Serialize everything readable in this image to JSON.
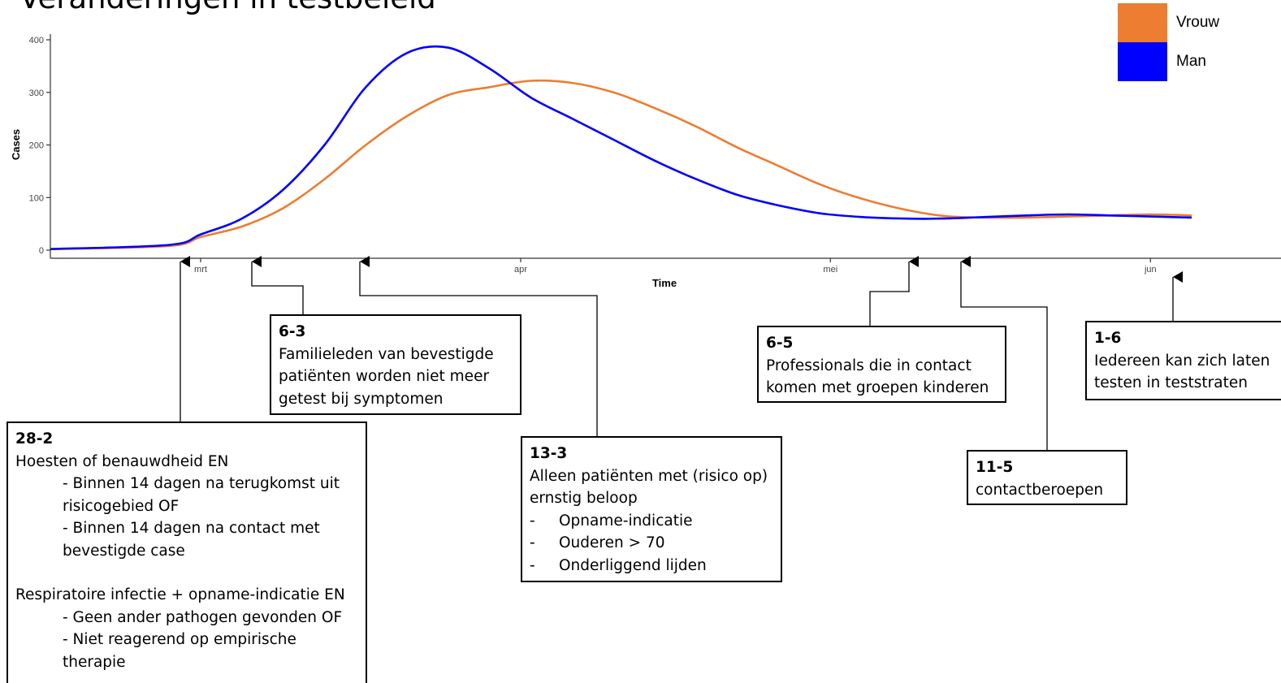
{
  "title": "Veranderingen in testbeleid",
  "chart_data": {
    "type": "line",
    "xlabel": "Time",
    "ylabel": "Cases",
    "ylim": [
      0,
      400
    ],
    "yticks": [
      0,
      100,
      200,
      300,
      400
    ],
    "xticks": [
      "mrt",
      "apr",
      "mei",
      "jun"
    ],
    "x_dates_note_format": "day-month 2020",
    "x": [
      "23-2",
      "27-2",
      "1-3",
      "5-3",
      "9-3",
      "13-3",
      "17-3",
      "21-3",
      "25-3",
      "29-3",
      "2-4",
      "6-4",
      "10-4",
      "14-4",
      "18-4",
      "22-4",
      "26-4",
      "30-4",
      "4-5",
      "8-5",
      "12-5",
      "16-5",
      "20-5",
      "24-5",
      "28-5",
      "1-6",
      "5-6"
    ],
    "series": [
      {
        "name": "Vrouw",
        "color": "#ED7D31",
        "values": [
          2,
          8,
          25,
          45,
          80,
          135,
          200,
          255,
          295,
          310,
          322,
          318,
          300,
          270,
          235,
          195,
          160,
          125,
          98,
          78,
          65,
          62,
          62,
          64,
          66,
          68,
          66
        ]
      },
      {
        "name": "Man",
        "color": "#0000FF",
        "values": [
          2,
          10,
          30,
          60,
          115,
          200,
          310,
          375,
          385,
          345,
          290,
          250,
          210,
          170,
          135,
          105,
          85,
          70,
          63,
          60,
          60,
          63,
          66,
          68,
          66,
          64,
          62
        ]
      }
    ],
    "legend": "top-right"
  },
  "annotations": [
    {
      "date": "28-2",
      "lines": [
        "Hoesten of benauwdheid EN",
        "- Binnen 14 dagen na terugkomst uit",
        "risicogebied OF",
        "- Binnen 14 dagen na contact met",
        "bevestigde case",
        "Respiratoire infectie + opname-indicatie EN",
        "- Geen ander pathogen gevonden OF",
        "- Niet reagerend op empirische",
        "therapie"
      ]
    },
    {
      "date": "6-3",
      "lines": [
        "Familieleden van bevestigde",
        "patiënten worden niet meer",
        "getest bij symptomen"
      ]
    },
    {
      "date": "13-3",
      "lines": [
        "Alleen patiënten met (risico op)",
        "ernstig beloop",
        "Opname-indicatie",
        "Ouderen > 70",
        "Onderliggend lijden"
      ],
      "bullet": "-"
    },
    {
      "date": "6-5",
      "lines": [
        "Professionals die in contact",
        "komen met groepen kinderen"
      ]
    },
    {
      "date": "11-5",
      "lines": [
        "contactberoepen"
      ]
    },
    {
      "date": "1-6",
      "lines": [
        "Iedereen kan zich laten",
        "testen in teststraten"
      ]
    }
  ]
}
